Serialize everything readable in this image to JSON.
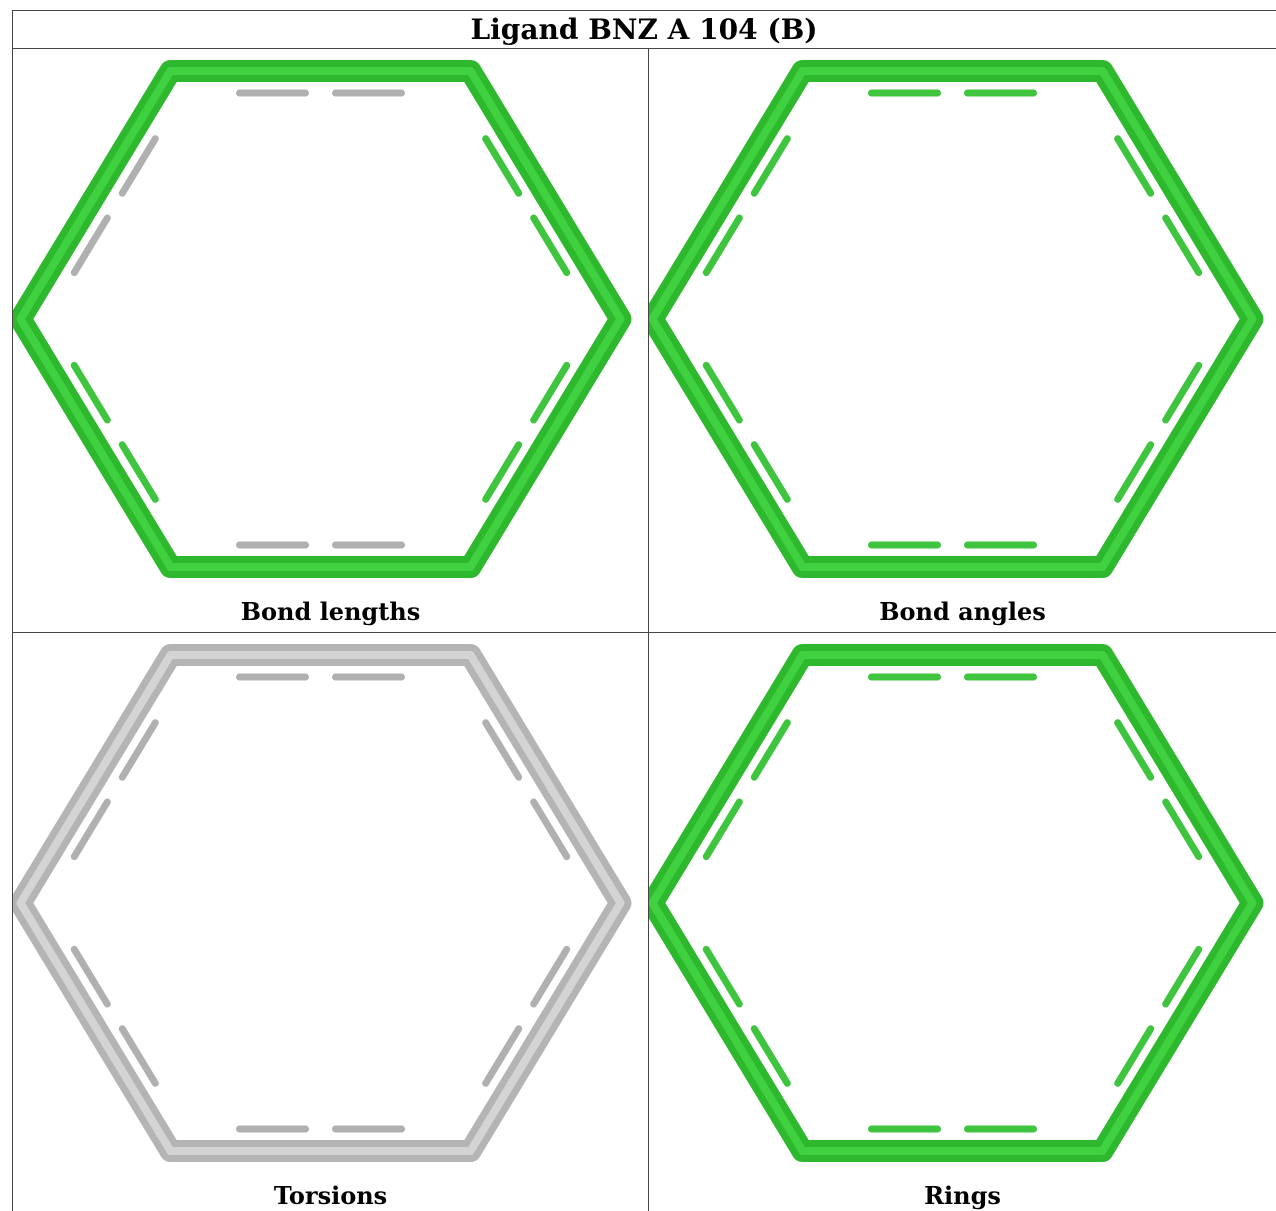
{
  "title": "Ligand BNZ A 104 (B)",
  "panels": [
    {
      "caption": "Bond lengths",
      "ring_color": "#2db82d",
      "inner_color": "#3fd13f",
      "mark_colors": [
        "#b0b0b0",
        "#3fc43f",
        "#3fc43f",
        "#b0b0b0",
        "#3fc43f",
        "#b0b0b0"
      ]
    },
    {
      "caption": "Bond angles",
      "ring_color": "#2db82d",
      "inner_color": "#3fd13f",
      "mark_colors": [
        "#3fc43f",
        "#3fc43f",
        "#3fc43f",
        "#3fc43f",
        "#3fc43f",
        "#3fc43f"
      ]
    },
    {
      "caption": "Torsions",
      "ring_color": "#b4b4b4",
      "inner_color": "#d4d4d4",
      "mark_colors": [
        "#b0b0b0",
        "#b0b0b0",
        "#b0b0b0",
        "#b0b0b0",
        "#b0b0b0",
        "#b0b0b0"
      ]
    },
    {
      "caption": "Rings",
      "ring_color": "#2db82d",
      "inner_color": "#3fd13f",
      "mark_colors": [
        "#3fc43f",
        "#3fc43f",
        "#3fc43f",
        "#3fc43f",
        "#3fc43f",
        "#3fc43f"
      ]
    }
  ]
}
